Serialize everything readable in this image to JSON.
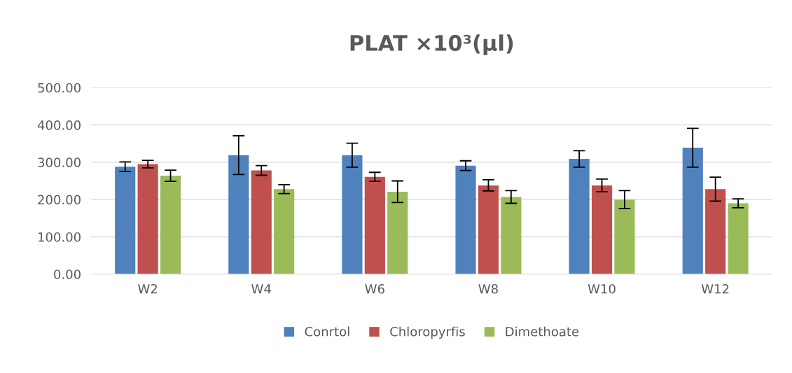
{
  "chart_data": {
    "type": "bar",
    "title": "PLAT ×10³(µl)",
    "categories": [
      "W2",
      "W4",
      "W6",
      "W8",
      "W10",
      "W12"
    ],
    "series": [
      {
        "name": "Conrtol",
        "color": "#4f81bd",
        "values": [
          288,
          319,
          319,
          291,
          309,
          339
        ],
        "errors": [
          13,
          52,
          32,
          13,
          22,
          52
        ]
      },
      {
        "name": "Chloropyrfis",
        "color": "#c0504d",
        "values": [
          295,
          278,
          261,
          238,
          238,
          228
        ],
        "errors": [
          10,
          13,
          12,
          15,
          17,
          32
        ]
      },
      {
        "name": "Dimethoate",
        "color": "#9bbb59",
        "values": [
          264,
          228,
          221,
          207,
          200,
          190
        ],
        "errors": [
          15,
          12,
          29,
          17,
          24,
          12
        ]
      }
    ],
    "ylim": [
      0,
      500
    ],
    "yticks": [
      {
        "value": 0,
        "label": "0.00"
      },
      {
        "value": 100,
        "label": "100.00"
      },
      {
        "value": 200,
        "label": "200.00"
      },
      {
        "value": 300,
        "label": "300.00"
      },
      {
        "value": 400,
        "label": "400.00"
      },
      {
        "value": 500,
        "label": "500.00"
      }
    ],
    "grid": "y",
    "legend": "bottom"
  }
}
